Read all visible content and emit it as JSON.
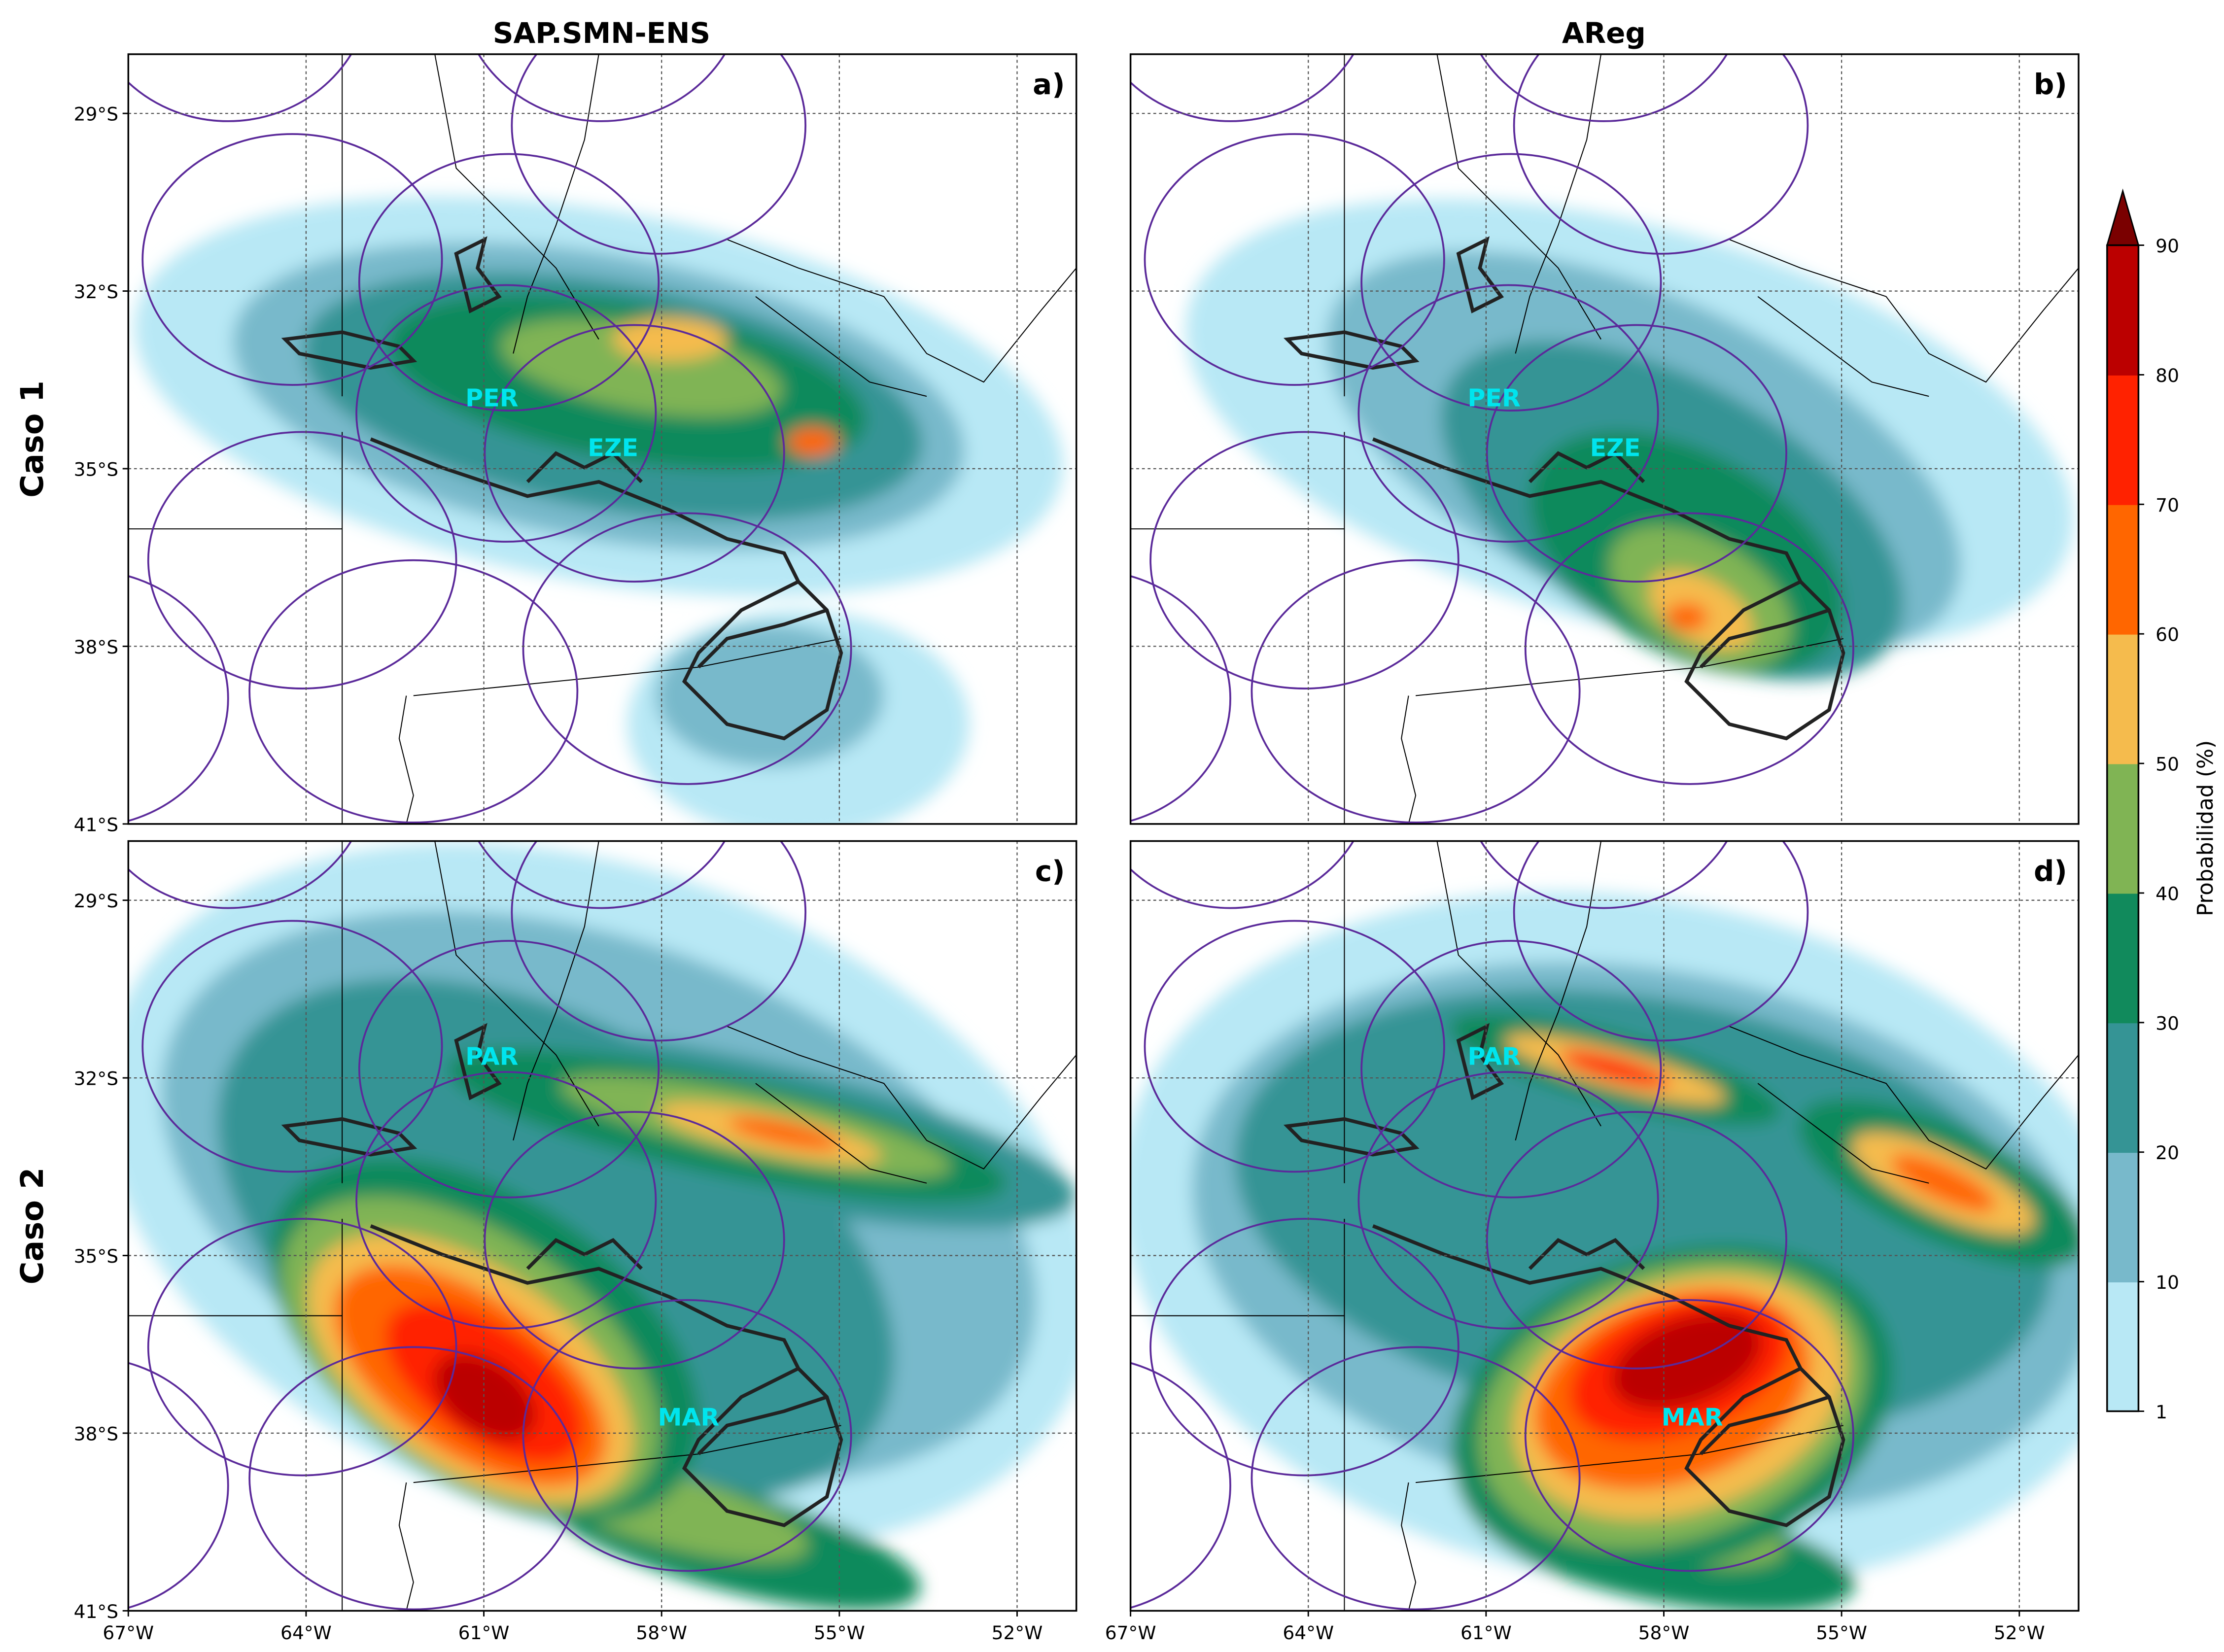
{
  "chart_data": {
    "type": "heatmap",
    "columns": [
      "SAP.SMN-ENS",
      "AReg"
    ],
    "rows": [
      "Caso 1",
      "Caso 2"
    ],
    "panels": [
      {
        "label": "a)",
        "model": "SAP.SMN-ENS",
        "case": "Caso 1",
        "stations": [
          "PER",
          "EZE"
        ]
      },
      {
        "label": "b)",
        "model": "AReg",
        "case": "Caso 1",
        "stations": [
          "PER",
          "EZE"
        ]
      },
      {
        "label": "c)",
        "model": "SAP.SMN-ENS",
        "case": "Caso 2",
        "stations": [
          "PAR",
          "MAR"
        ]
      },
      {
        "label": "d)",
        "model": "AReg",
        "case": "Caso 2",
        "stations": [
          "PAR",
          "MAR"
        ]
      }
    ],
    "x_ticks": [
      "67°W",
      "64°W",
      "61°W",
      "58°W",
      "55°W",
      "52°W"
    ],
    "y_ticks": [
      "29°S",
      "32°S",
      "35°S",
      "38°S",
      "41°S"
    ],
    "xlim": [
      -67,
      -51
    ],
    "ylim": [
      -41,
      -28
    ],
    "grid": true,
    "colorbar": {
      "label": "Probabilidad (%)",
      "levels": [
        1,
        10,
        20,
        30,
        40,
        50,
        60,
        70,
        80,
        90
      ],
      "tick_labels": [
        "1",
        "10",
        "20",
        "30",
        "40",
        "50",
        "60",
        "70",
        "80",
        "90"
      ],
      "colors": [
        "#b8e8f5",
        "#78b9cb",
        "#359495",
        "#118a5c",
        "#80b454",
        "#f5bb4d",
        "#ff6600",
        "#ff2200",
        "#bb0000"
      ],
      "extend_color": "#7a0000",
      "extend": "max",
      "placement": "right"
    }
  }
}
